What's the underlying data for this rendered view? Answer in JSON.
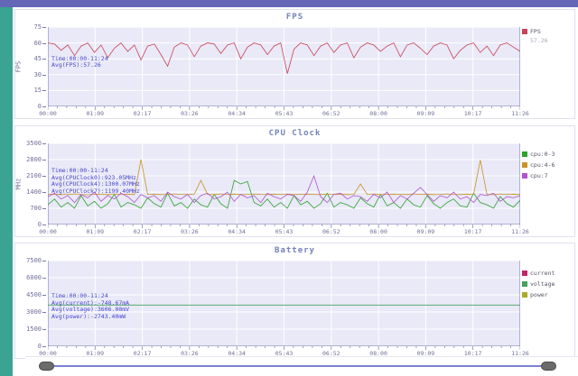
{
  "frame": {
    "top_bar_color": "#6467b8",
    "left_bar_color": "#3aa392",
    "panel_border_color": "#e0e0f0",
    "plot_background": "#e9e9f7",
    "grid_color": "#ffffff",
    "axis_color": "#7878b0",
    "title_color": "#7283b9",
    "annotation_color": "#4646cf"
  },
  "slider": {
    "track_color": "#7b82d6",
    "handle_color": "#6b6b6b"
  },
  "xticks": [
    "00:00",
    "01:09",
    "02:17",
    "03:26",
    "04:34",
    "05:43",
    "06:52",
    "08:00",
    "09:09",
    "10:17",
    "11:26"
  ],
  "chart_data": [
    {
      "type": "line",
      "title": "FPS",
      "ylabel": "FPS",
      "ylim": [
        0,
        75
      ],
      "yticks": [
        0,
        15,
        30,
        45,
        60,
        75
      ],
      "x_ticklabels": [
        "00:00",
        "01:09",
        "02:17",
        "03:26",
        "04:34",
        "05:43",
        "06:52",
        "08:00",
        "09:09",
        "10:17",
        "11:26"
      ],
      "grid": true,
      "legend_position": "right",
      "legend": [
        {
          "name": "FPS",
          "color": "#c74458",
          "value": "57.26"
        }
      ],
      "annotation": [
        "Time:00:00-11:24",
        "Avg(FPS):57.26"
      ],
      "series": [
        {
          "name": "FPS",
          "color": "#c74458",
          "values": [
            60,
            59,
            53,
            58,
            48,
            57,
            60,
            51,
            58,
            46,
            55,
            60,
            52,
            58,
            44,
            57,
            59,
            49,
            38,
            56,
            60,
            58,
            47,
            57,
            60,
            59,
            50,
            58,
            60,
            45,
            56,
            60,
            58,
            49,
            57,
            60,
            31,
            54,
            60,
            58,
            48,
            57,
            60,
            51,
            58,
            60,
            46,
            56,
            60,
            58,
            52,
            57,
            60,
            47,
            58,
            60,
            55,
            49,
            57,
            60,
            58,
            45,
            53,
            58,
            60,
            51,
            57,
            48,
            58,
            60,
            56,
            52
          ]
        }
      ]
    },
    {
      "type": "line",
      "title": "CPU Clock",
      "ylabel": "MHz",
      "ylim": [
        0,
        3500
      ],
      "yticks": [
        0,
        700,
        1400,
        2100,
        2800,
        3500
      ],
      "x_ticklabels": [
        "00:00",
        "01:09",
        "02:17",
        "03:26",
        "04:34",
        "05:43",
        "06:52",
        "08:00",
        "09:09",
        "10:17",
        "11:26"
      ],
      "grid": true,
      "legend_position": "right",
      "legend": [
        {
          "name": "cpu:0-3",
          "color": "#2fa12f"
        },
        {
          "name": "cpu:4-6",
          "color": "#c79428"
        },
        {
          "name": "cpu:7",
          "color": "#b153cb"
        }
      ],
      "annotation": [
        "Time:00:00-11:24",
        "Avg(CPUClock0):923.05MHz",
        "Avg(CPUClock4):1300.07MHz",
        "Avg(CPUClock7):1199.40MHz"
      ],
      "series": [
        {
          "name": "cpu:0-3",
          "color": "#2fa12f",
          "values": [
            850,
            1100,
            750,
            950,
            700,
            1250,
            800,
            1000,
            700,
            900,
            1300,
            750,
            950,
            850,
            700,
            1150,
            900,
            750,
            1350,
            800,
            950,
            700,
            1100,
            850,
            750,
            1300,
            900,
            700,
            1900,
            1750,
            1850,
            950,
            800,
            1100,
            750,
            950,
            700,
            1250,
            850,
            1000,
            700,
            900,
            1350,
            750,
            950,
            850,
            700,
            1150,
            900,
            750,
            1300,
            800,
            950,
            700,
            1100,
            850,
            750,
            1250,
            900,
            700,
            950,
            1100,
            800,
            750,
            1350,
            950,
            850,
            700,
            1200,
            900,
            750,
            1050
          ]
        },
        {
          "name": "cpu:4-6",
          "color": "#c79428",
          "values": [
            1300,
            1310,
            1290,
            1300,
            1320,
            1300,
            1280,
            1310,
            1300,
            1290,
            1320,
            1300,
            1310,
            1290,
            2800,
            1300,
            1310,
            1290,
            1300,
            1320,
            1300,
            1290,
            1310,
            1900,
            1300,
            1290,
            1320,
            1300,
            1310,
            1290,
            1300,
            1320,
            1300,
            1290,
            1310,
            1300,
            1320,
            1290,
            1300,
            1310,
            1300,
            1290,
            1320,
            1300,
            1310,
            1290,
            1300,
            1750,
            1300,
            1320,
            1290,
            1300,
            1310,
            1300,
            1290,
            1320,
            1300,
            1310,
            1290,
            1300,
            1320,
            1300,
            1290,
            1310,
            1300,
            2780,
            1300,
            1290,
            1320,
            1300,
            1310,
            1290
          ]
        },
        {
          "name": "cpu:7",
          "color": "#b153cb",
          "values": [
            1200,
            1350,
            1100,
            1250,
            950,
            1300,
            1150,
            1400,
            1000,
            1250,
            1100,
            1350,
            1200,
            950,
            1300,
            1150,
            1250,
            1000,
            1400,
            1200,
            1100,
            1300,
            950,
            1250,
            1350,
            1100,
            1200,
            1400,
            1000,
            1300,
            1150,
            1250,
            950,
            1350,
            1200,
            1100,
            1300,
            1250,
            1000,
            1400,
            2100,
            1200,
            950,
            1300,
            1350,
            1100,
            1250,
            1200,
            1000,
            1300,
            1150,
            1400,
            950,
            1250,
            1100,
            1350,
            1600,
            1300,
            1000,
            1250,
            1150,
            1400,
            1100,
            1200,
            950,
            1300,
            1250,
            1350,
            1000,
            1200,
            1150,
            1250
          ]
        }
      ]
    },
    {
      "type": "line",
      "title": "Battery",
      "ylabel": "",
      "ylim": [
        0,
        7500
      ],
      "yticks": [
        0,
        1500,
        3000,
        4500,
        6000,
        7500
      ],
      "x_ticklabels": [
        "00:00",
        "01:09",
        "02:17",
        "03:26",
        "04:34",
        "05:43",
        "06:52",
        "08:00",
        "09:09",
        "10:17",
        "11:26"
      ],
      "grid": true,
      "legend_position": "right",
      "legend": [
        {
          "name": "current",
          "color": "#c02868"
        },
        {
          "name": "voltage",
          "color": "#45a05f"
        },
        {
          "name": "power",
          "color": "#aaaa2a"
        }
      ],
      "annotation": [
        "Time:00:00-11:24",
        "Avg(current):-748.67mA",
        "Avg(voltage):3606.00mV",
        "Avg(power):-2743.40mW"
      ],
      "series": [
        {
          "name": "current",
          "color": "#c02868",
          "values": [
            -748.67,
            -748.67
          ]
        },
        {
          "name": "voltage",
          "color": "#45a05f",
          "values": [
            3606,
            3606
          ]
        },
        {
          "name": "power",
          "color": "#aaaa2a",
          "values": [
            -2743.4,
            -2743.4
          ]
        }
      ]
    }
  ]
}
